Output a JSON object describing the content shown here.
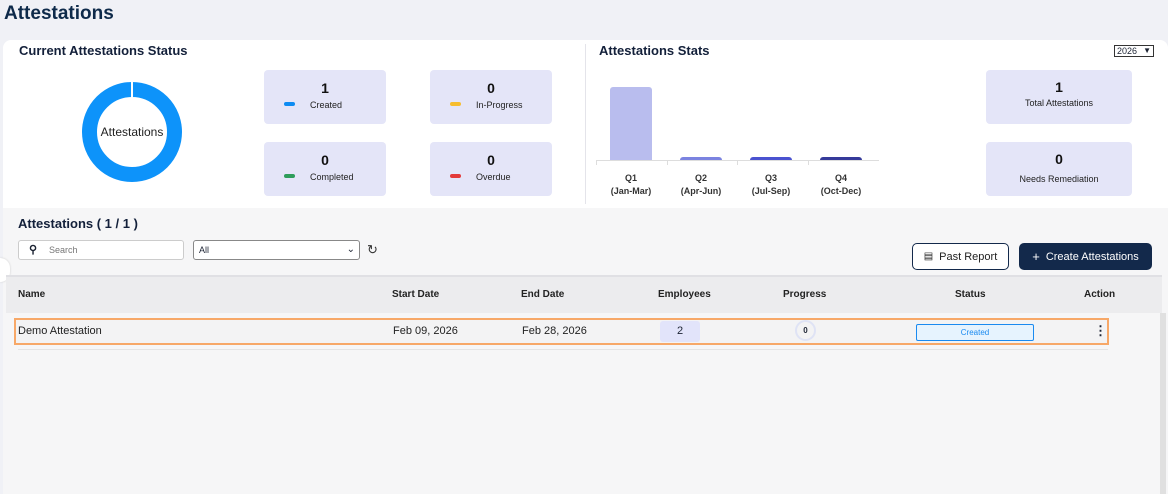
{
  "page_title": "Attestations",
  "status_card": {
    "title": "Current  Attestations  Status",
    "donut_label": "Attestations",
    "stats": [
      {
        "count": "1",
        "label": "Created",
        "color": "#0d8bf2"
      },
      {
        "count": "0",
        "label": "In-Progress",
        "color": "#f6bd2f"
      },
      {
        "count": "0",
        "label": "Completed",
        "color": "#2e9d5b"
      },
      {
        "count": "0",
        "label": "Overdue",
        "color": "#e33a3a"
      }
    ]
  },
  "stats_card": {
    "title": "Attestations Stats",
    "year": "2026",
    "total_count": "1",
    "total_label": "Total  Attestations",
    "remediation_count": "0",
    "remediation_label": "Needs Remediation"
  },
  "chart_data": {
    "type": "bar",
    "categories": [
      "Q1",
      "Q2",
      "Q3",
      "Q4"
    ],
    "sublabels": [
      "(Jan-Mar)",
      "(Apr-Jun)",
      "(Jul-Sep)",
      "(Oct-Dec)"
    ],
    "values": [
      1,
      0,
      0,
      0
    ],
    "colors": [
      "#b9bdee",
      "#7b83e0",
      "#4a52d0",
      "#353a9a"
    ],
    "ylim": [
      0,
      1
    ]
  },
  "list": {
    "title": "Attestations ( 1 / 1 )",
    "search_placeholder": "Search",
    "filter_value": "All",
    "past_report": "Past Report",
    "create": "Create Attestations",
    "columns": [
      "Name",
      "Start Date",
      "End Date",
      "Employees",
      "Progress",
      "Status",
      "Action"
    ],
    "rows": [
      {
        "name": "Demo Attestation",
        "start": "Feb 09, 2026",
        "end": "Feb 28, 2026",
        "employees": "2",
        "progress": "0",
        "status": "Created"
      }
    ]
  }
}
